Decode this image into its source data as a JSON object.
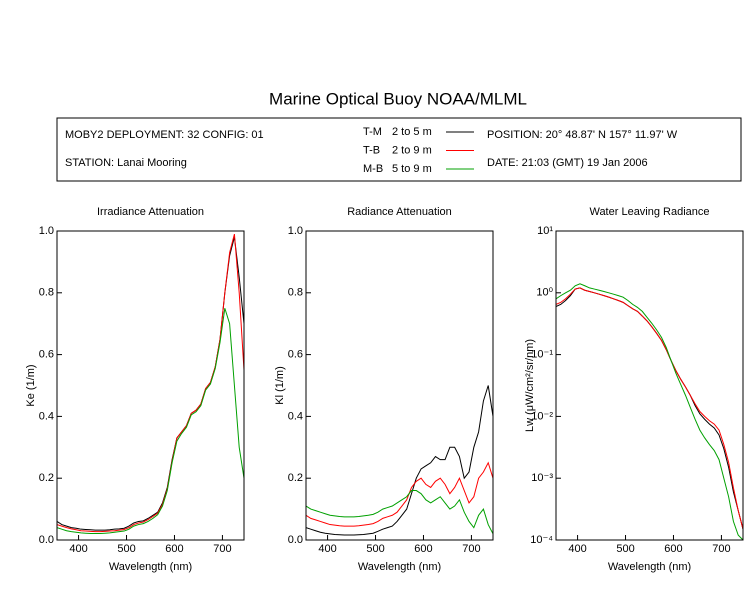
{
  "header": {
    "title": "Marine Optical Buoy NOAA/MLML",
    "deployment": "MOBY2 DEPLOYMENT: 32 CONFIG: 01",
    "station": "STATION: Lanai Mooring",
    "position": "POSITION: 20° 48.87' N   157° 11.97' W",
    "date": "DATE: 21:03 (GMT) 19 Jan 2006",
    "depths": [
      "2 to 5  m",
      "2 to 9  m",
      "5 to 9  m"
    ]
  },
  "chart_data": [
    {
      "type": "line",
      "title": "Irradiance Attenuation",
      "x_label": "Wavelength (nm)",
      "y_label": "Ke  (1/m)",
      "xlim": [
        355,
        745
      ],
      "xticks": [
        400,
        500,
        600,
        700
      ],
      "ylim": [
        0,
        1
      ],
      "yticks": [
        {
          "value": 0,
          "label": "0.0"
        },
        0.2,
        0.4,
        0.6,
        0.8,
        {
          "value": 1,
          "label": "1.0"
        }
      ],
      "x": [
        355,
        365,
        375,
        385,
        395,
        405,
        415,
        425,
        435,
        445,
        455,
        465,
        475,
        485,
        495,
        505,
        515,
        525,
        535,
        545,
        555,
        565,
        575,
        585,
        595,
        605,
        615,
        625,
        635,
        645,
        655,
        665,
        675,
        685,
        695,
        705,
        715,
        725,
        735,
        745
      ],
      "series": [
        {
          "name": "T-M",
          "color": "#000000",
          "values": [
            0.06,
            0.05,
            0.045,
            0.04,
            0.038,
            0.035,
            0.034,
            0.033,
            0.032,
            0.032,
            0.032,
            0.033,
            0.035,
            0.036,
            0.038,
            0.045,
            0.055,
            0.06,
            0.062,
            0.07,
            0.08,
            0.09,
            0.12,
            0.17,
            0.26,
            0.33,
            0.35,
            0.37,
            0.41,
            0.42,
            0.44,
            0.49,
            0.51,
            0.56,
            0.65,
            0.8,
            0.92,
            0.98,
            0.85,
            0.7
          ]
        },
        {
          "name": "T-B",
          "color": "#ff0000",
          "values": [
            0.05,
            0.045,
            0.04,
            0.036,
            0.033,
            0.03,
            0.029,
            0.028,
            0.027,
            0.027,
            0.028,
            0.029,
            0.03,
            0.032,
            0.034,
            0.04,
            0.05,
            0.055,
            0.058,
            0.066,
            0.076,
            0.087,
            0.115,
            0.165,
            0.255,
            0.33,
            0.35,
            0.37,
            0.41,
            0.42,
            0.44,
            0.49,
            0.51,
            0.56,
            0.65,
            0.8,
            0.93,
            0.99,
            0.8,
            0.55
          ]
        },
        {
          "name": "M-B",
          "color": "#00a000",
          "values": [
            0.04,
            0.035,
            0.03,
            0.027,
            0.025,
            0.023,
            0.022,
            0.021,
            0.021,
            0.021,
            0.022,
            0.023,
            0.025,
            0.027,
            0.029,
            0.035,
            0.045,
            0.05,
            0.053,
            0.06,
            0.07,
            0.082,
            0.11,
            0.16,
            0.25,
            0.32,
            0.345,
            0.365,
            0.405,
            0.415,
            0.435,
            0.485,
            0.505,
            0.555,
            0.64,
            0.75,
            0.7,
            0.5,
            0.3,
            0.2
          ]
        }
      ]
    },
    {
      "type": "line",
      "title": "Radiance Attenuation",
      "x_label": "Wavelength (nm)",
      "y_label": "Kl  (1/m)",
      "xlim": [
        355,
        745
      ],
      "xticks": [
        400,
        500,
        600,
        700
      ],
      "ylim": [
        0,
        1
      ],
      "yticks": [
        {
          "value": 0,
          "label": "0.0"
        },
        0.2,
        0.4,
        0.6,
        0.8,
        {
          "value": 1,
          "label": "1.0"
        }
      ],
      "x": [
        355,
        365,
        375,
        385,
        395,
        405,
        415,
        425,
        435,
        445,
        455,
        465,
        475,
        485,
        495,
        505,
        515,
        525,
        535,
        545,
        555,
        565,
        575,
        585,
        595,
        605,
        615,
        625,
        635,
        645,
        655,
        665,
        675,
        685,
        695,
        705,
        715,
        725,
        735,
        745
      ],
      "series": [
        {
          "name": "T-M",
          "color": "#000000",
          "values": [
            0.04,
            0.035,
            0.03,
            0.025,
            0.022,
            0.02,
            0.018,
            0.017,
            0.016,
            0.016,
            0.016,
            0.017,
            0.018,
            0.02,
            0.022,
            0.028,
            0.035,
            0.04,
            0.045,
            0.06,
            0.08,
            0.1,
            0.15,
            0.2,
            0.23,
            0.24,
            0.25,
            0.27,
            0.26,
            0.26,
            0.3,
            0.3,
            0.27,
            0.2,
            0.22,
            0.3,
            0.35,
            0.45,
            0.5,
            0.4
          ]
        },
        {
          "name": "T-B",
          "color": "#ff0000",
          "values": [
            0.08,
            0.07,
            0.065,
            0.06,
            0.055,
            0.05,
            0.048,
            0.046,
            0.045,
            0.045,
            0.045,
            0.046,
            0.048,
            0.05,
            0.053,
            0.06,
            0.07,
            0.075,
            0.08,
            0.09,
            0.11,
            0.13,
            0.17,
            0.19,
            0.2,
            0.18,
            0.17,
            0.19,
            0.2,
            0.18,
            0.15,
            0.17,
            0.2,
            0.16,
            0.12,
            0.14,
            0.2,
            0.22,
            0.25,
            0.2
          ]
        },
        {
          "name": "M-B",
          "color": "#00a000",
          "values": [
            0.11,
            0.1,
            0.095,
            0.09,
            0.085,
            0.08,
            0.078,
            0.076,
            0.075,
            0.075,
            0.075,
            0.076,
            0.078,
            0.08,
            0.083,
            0.09,
            0.1,
            0.105,
            0.11,
            0.12,
            0.13,
            0.14,
            0.16,
            0.16,
            0.15,
            0.13,
            0.12,
            0.13,
            0.14,
            0.12,
            0.1,
            0.11,
            0.13,
            0.09,
            0.06,
            0.04,
            0.08,
            0.1,
            0.05,
            0.02
          ]
        }
      ]
    },
    {
      "type": "line",
      "title": "Water Leaving Radiance",
      "x_label": "Wavelength (nm)",
      "y_label": "Lw  (μW/cm²/sr/nm)",
      "log_y": true,
      "xlim": [
        355,
        745
      ],
      "xticks": [
        400,
        500,
        600,
        700
      ],
      "ylim": [
        0.0001,
        10
      ],
      "yticks": [
        {
          "value": 0.0001,
          "label": "10⁻⁴"
        },
        {
          "value": 0.001,
          "label": "10⁻³"
        },
        {
          "value": 0.01,
          "label": "10⁻²"
        },
        {
          "value": 0.1,
          "label": "10⁻¹"
        },
        {
          "value": 1,
          "label": "10⁰"
        },
        {
          "value": 10,
          "label": "10¹"
        }
      ],
      "x": [
        355,
        365,
        375,
        385,
        395,
        405,
        415,
        425,
        435,
        445,
        455,
        465,
        475,
        485,
        495,
        505,
        515,
        525,
        535,
        545,
        555,
        565,
        575,
        585,
        595,
        605,
        615,
        625,
        635,
        645,
        655,
        665,
        675,
        685,
        695,
        705,
        715,
        725,
        735,
        745
      ],
      "series": [
        {
          "name": "T-M",
          "color": "#000000",
          "values": [
            0.6,
            0.65,
            0.75,
            0.9,
            1.15,
            1.2,
            1.1,
            1.05,
            1.0,
            0.95,
            0.9,
            0.85,
            0.8,
            0.75,
            0.7,
            0.62,
            0.55,
            0.5,
            0.42,
            0.35,
            0.28,
            0.22,
            0.17,
            0.12,
            0.08,
            0.055,
            0.04,
            0.03,
            0.022,
            0.015,
            0.011,
            0.009,
            0.0075,
            0.0065,
            0.005,
            0.003,
            0.0015,
            0.0006,
            0.0003,
            0.00015
          ]
        },
        {
          "name": "T-B",
          "color": "#ff0000",
          "values": [
            0.65,
            0.7,
            0.8,
            0.95,
            1.15,
            1.2,
            1.1,
            1.05,
            1.0,
            0.95,
            0.9,
            0.85,
            0.8,
            0.75,
            0.7,
            0.62,
            0.55,
            0.5,
            0.42,
            0.35,
            0.28,
            0.22,
            0.17,
            0.12,
            0.08,
            0.055,
            0.04,
            0.03,
            0.022,
            0.016,
            0.012,
            0.01,
            0.0085,
            0.0075,
            0.006,
            0.0035,
            0.0018,
            0.0007,
            0.0003,
            0.00015
          ]
        },
        {
          "name": "M-B",
          "color": "#00a000",
          "values": [
            0.8,
            0.9,
            1.0,
            1.1,
            1.3,
            1.4,
            1.3,
            1.2,
            1.15,
            1.1,
            1.05,
            1.0,
            0.95,
            0.9,
            0.85,
            0.75,
            0.65,
            0.58,
            0.5,
            0.4,
            0.32,
            0.25,
            0.19,
            0.13,
            0.08,
            0.05,
            0.033,
            0.022,
            0.014,
            0.009,
            0.006,
            0.0045,
            0.0035,
            0.0028,
            0.002,
            0.001,
            0.0005,
            0.0002,
            0.00012,
            0.0001
          ]
        }
      ]
    }
  ]
}
